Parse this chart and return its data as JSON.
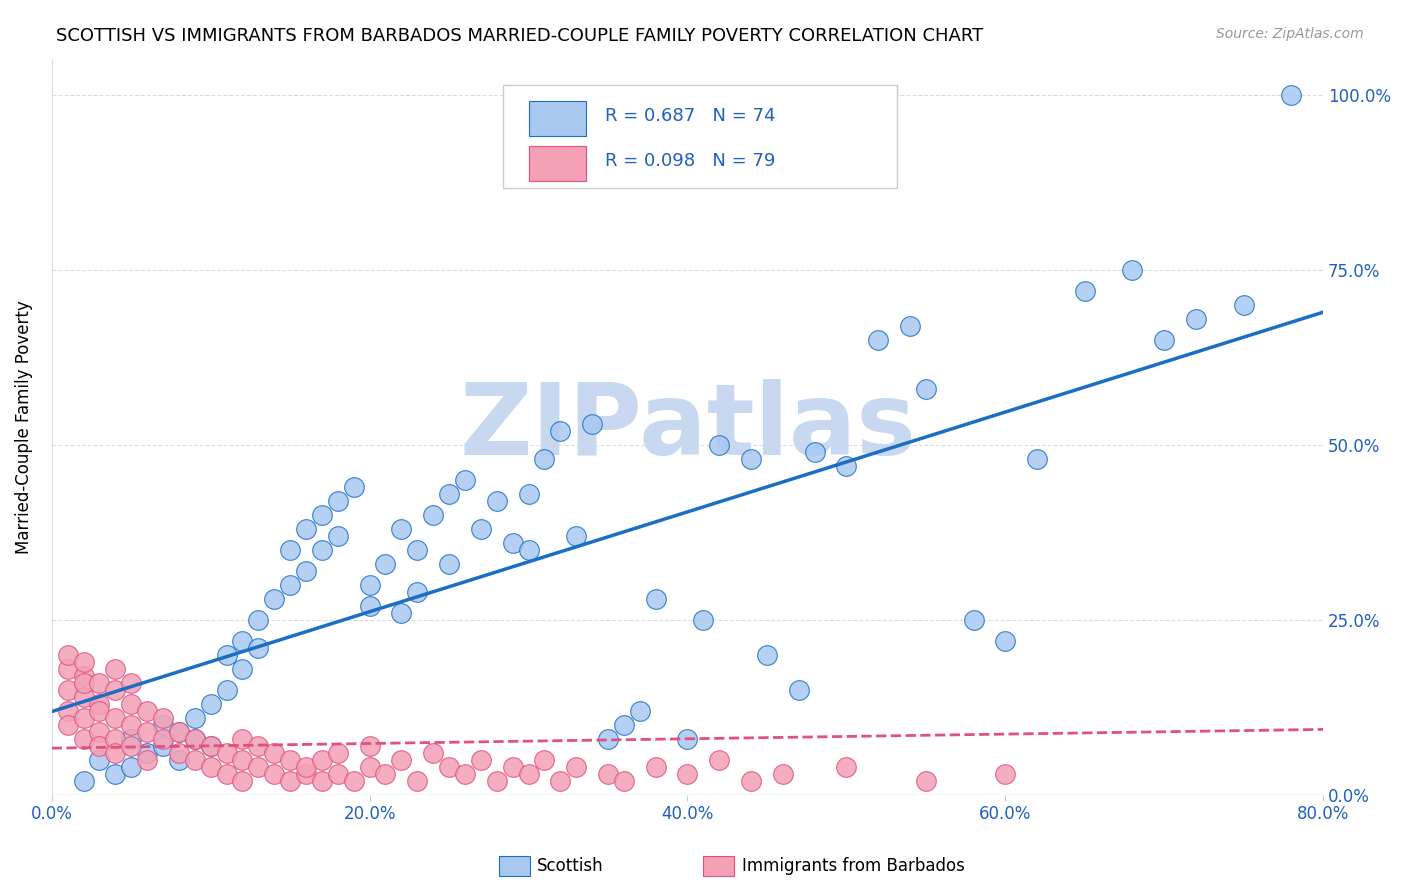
{
  "title": "SCOTTISH VS IMMIGRANTS FROM BARBADOS MARRIED-COUPLE FAMILY POVERTY CORRELATION CHART",
  "source": "Source: ZipAtlas.com",
  "ylabel": "Married-Couple Family Poverty",
  "yticks": [
    "0.0%",
    "25.0%",
    "50.0%",
    "75.0%",
    "100.0%"
  ],
  "ytick_vals": [
    0.0,
    0.25,
    0.5,
    0.75,
    1.0
  ],
  "xlim": [
    0.0,
    0.8
  ],
  "ylim": [
    0.0,
    1.05
  ],
  "scottish_R": 0.687,
  "scottish_N": 74,
  "barbados_R": 0.098,
  "barbados_N": 79,
  "scottish_color": "#a8c8f0",
  "barbados_color": "#f4a0b5",
  "scottish_line_color": "#1a6fc4",
  "barbados_line_color": "#e05080",
  "background_color": "#ffffff",
  "watermark_color": "#c8d8f0",
  "scottish_scatter_x": [
    0.02,
    0.03,
    0.04,
    0.05,
    0.05,
    0.06,
    0.07,
    0.07,
    0.08,
    0.08,
    0.09,
    0.09,
    0.1,
    0.1,
    0.11,
    0.11,
    0.12,
    0.12,
    0.13,
    0.13,
    0.14,
    0.15,
    0.15,
    0.16,
    0.16,
    0.17,
    0.17,
    0.18,
    0.18,
    0.19,
    0.2,
    0.2,
    0.21,
    0.22,
    0.22,
    0.23,
    0.23,
    0.24,
    0.25,
    0.25,
    0.26,
    0.27,
    0.28,
    0.29,
    0.3,
    0.3,
    0.31,
    0.32,
    0.33,
    0.34,
    0.35,
    0.36,
    0.37,
    0.38,
    0.4,
    0.41,
    0.42,
    0.44,
    0.45,
    0.47,
    0.48,
    0.5,
    0.52,
    0.54,
    0.55,
    0.58,
    0.6,
    0.62,
    0.65,
    0.68,
    0.7,
    0.72,
    0.75,
    0.78
  ],
  "scottish_scatter_y": [
    0.02,
    0.05,
    0.03,
    0.08,
    0.04,
    0.06,
    0.1,
    0.07,
    0.09,
    0.05,
    0.11,
    0.08,
    0.13,
    0.07,
    0.15,
    0.2,
    0.22,
    0.18,
    0.25,
    0.21,
    0.28,
    0.35,
    0.3,
    0.38,
    0.32,
    0.4,
    0.35,
    0.42,
    0.37,
    0.44,
    0.27,
    0.3,
    0.33,
    0.38,
    0.26,
    0.35,
    0.29,
    0.4,
    0.43,
    0.33,
    0.45,
    0.38,
    0.42,
    0.36,
    0.43,
    0.35,
    0.48,
    0.52,
    0.37,
    0.53,
    0.08,
    0.1,
    0.12,
    0.28,
    0.08,
    0.25,
    0.5,
    0.48,
    0.2,
    0.15,
    0.49,
    0.47,
    0.65,
    0.67,
    0.58,
    0.25,
    0.22,
    0.48,
    0.72,
    0.75,
    0.65,
    0.68,
    0.7,
    1.0
  ],
  "barbados_scatter_x": [
    0.01,
    0.01,
    0.01,
    0.01,
    0.01,
    0.02,
    0.02,
    0.02,
    0.02,
    0.02,
    0.02,
    0.03,
    0.03,
    0.03,
    0.03,
    0.03,
    0.04,
    0.04,
    0.04,
    0.04,
    0.04,
    0.05,
    0.05,
    0.05,
    0.05,
    0.06,
    0.06,
    0.06,
    0.07,
    0.07,
    0.08,
    0.08,
    0.09,
    0.09,
    0.1,
    0.1,
    0.11,
    0.11,
    0.12,
    0.12,
    0.12,
    0.13,
    0.13,
    0.14,
    0.14,
    0.15,
    0.15,
    0.16,
    0.16,
    0.17,
    0.17,
    0.18,
    0.18,
    0.19,
    0.2,
    0.2,
    0.21,
    0.22,
    0.23,
    0.24,
    0.25,
    0.26,
    0.27,
    0.28,
    0.29,
    0.3,
    0.31,
    0.32,
    0.33,
    0.35,
    0.36,
    0.38,
    0.4,
    0.42,
    0.44,
    0.46,
    0.5,
    0.55,
    0.6
  ],
  "barbados_scatter_y": [
    0.12,
    0.15,
    0.18,
    0.2,
    0.1,
    0.14,
    0.17,
    0.11,
    0.19,
    0.16,
    0.08,
    0.13,
    0.16,
    0.09,
    0.12,
    0.07,
    0.11,
    0.15,
    0.08,
    0.18,
    0.06,
    0.1,
    0.13,
    0.07,
    0.16,
    0.09,
    0.05,
    0.12,
    0.08,
    0.11,
    0.06,
    0.09,
    0.05,
    0.08,
    0.04,
    0.07,
    0.06,
    0.03,
    0.05,
    0.08,
    0.02,
    0.04,
    0.07,
    0.03,
    0.06,
    0.02,
    0.05,
    0.03,
    0.04,
    0.02,
    0.05,
    0.03,
    0.06,
    0.02,
    0.04,
    0.07,
    0.03,
    0.05,
    0.02,
    0.06,
    0.04,
    0.03,
    0.05,
    0.02,
    0.04,
    0.03,
    0.05,
    0.02,
    0.04,
    0.03,
    0.02,
    0.04,
    0.03,
    0.05,
    0.02,
    0.03,
    0.04,
    0.02,
    0.03
  ]
}
